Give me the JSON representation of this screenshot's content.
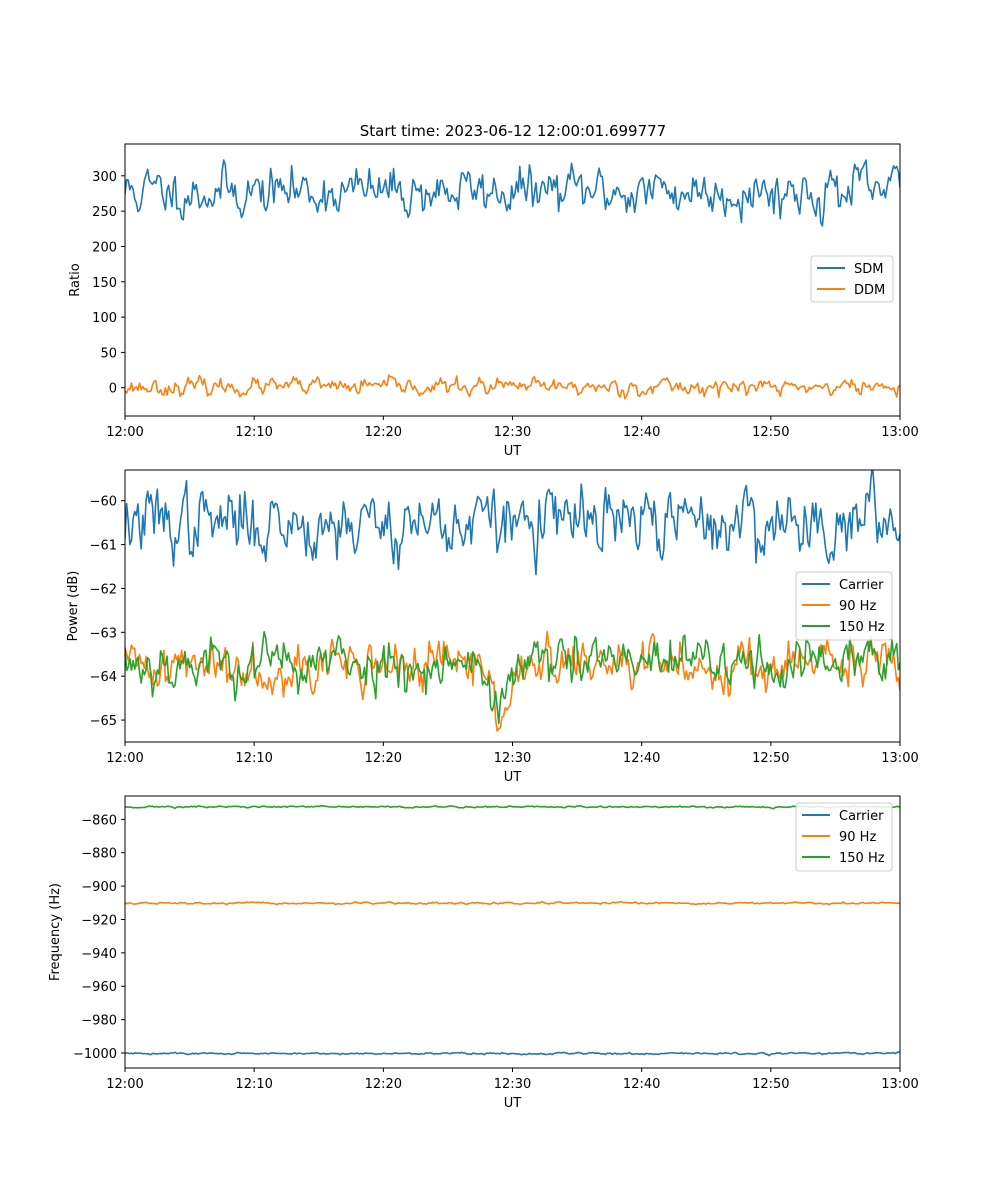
{
  "figure": {
    "title": "Start time: 2023-06-12 12:00:01.699777"
  },
  "colors": {
    "blue": "#1f77b4",
    "orange": "#ff7f0e",
    "green": "#2ca02c"
  },
  "chart_data": [
    {
      "type": "line",
      "title": "Start time: 2023-06-12 12:00:01.699777",
      "xlabel": "UT",
      "ylabel": "Ratio",
      "xlim": [
        "12:00",
        "13:00"
      ],
      "xticks": [
        "12:00",
        "12:10",
        "12:20",
        "12:30",
        "12:40",
        "12:50",
        "13:00"
      ],
      "ylim": [
        -40,
        345
      ],
      "yticks": [
        0,
        50,
        100,
        150,
        200,
        250,
        300
      ],
      "legend": "center-right",
      "series": [
        {
          "name": "SDM",
          "color": "#1f77b4",
          "mean": 278,
          "noise": 17,
          "features": [],
          "points": 480,
          "seed": 11
        },
        {
          "name": "DDM",
          "color": "#ff7f0e",
          "mean": 1,
          "noise": 6,
          "features": [],
          "points": 480,
          "seed": 23
        }
      ]
    },
    {
      "type": "line",
      "title": "",
      "xlabel": "UT",
      "ylabel": "Power (dB)",
      "xlim": [
        "12:00",
        "13:00"
      ],
      "xticks": [
        "12:00",
        "12:10",
        "12:20",
        "12:30",
        "12:40",
        "12:50",
        "13:00"
      ],
      "ylim": [
        -65.5,
        -59.3
      ],
      "yticks": [
        -65,
        -64,
        -63,
        -62,
        -61,
        -60
      ],
      "legend": "center-right",
      "series": [
        {
          "name": "Carrier",
          "color": "#1f77b4",
          "mean": -60.5,
          "noise": 0.4,
          "features": [],
          "points": 480,
          "seed": 37
        },
        {
          "name": "90 Hz",
          "color": "#ff7f0e",
          "mean": -63.75,
          "noise": 0.28,
          "features": [
            {
              "at": 29,
              "depth": -1.2,
              "width": 0.6
            }
          ],
          "points": 480,
          "seed": 41
        },
        {
          "name": "150 Hz",
          "color": "#2ca02c",
          "mean": -63.7,
          "noise": 0.3,
          "features": [
            {
              "at": 29,
              "depth": -0.8,
              "width": 0.8
            }
          ],
          "points": 480,
          "seed": 53
        }
      ]
    },
    {
      "type": "line",
      "title": "",
      "xlabel": "UT",
      "ylabel": "Frequency (Hz)",
      "xlim": [
        "12:00",
        "13:00"
      ],
      "xticks": [
        "12:00",
        "12:10",
        "12:20",
        "12:30",
        "12:40",
        "12:50",
        "13:00"
      ],
      "ylim": [
        -1009,
        -846
      ],
      "yticks": [
        -1000,
        -980,
        -960,
        -940,
        -920,
        -900,
        -880,
        -860
      ],
      "legend": "top-right",
      "series": [
        {
          "name": "Carrier",
          "color": "#1f77b4",
          "mean": -1000.3,
          "noise": 0.3,
          "features": [],
          "points": 480,
          "seed": 61
        },
        {
          "name": "90 Hz",
          "color": "#ff7f0e",
          "mean": -910.3,
          "noise": 0.3,
          "features": [],
          "points": 480,
          "seed": 67
        },
        {
          "name": "150 Hz",
          "color": "#2ca02c",
          "mean": -852.5,
          "noise": 0.3,
          "features": [],
          "points": 480,
          "seed": 71
        }
      ]
    }
  ]
}
